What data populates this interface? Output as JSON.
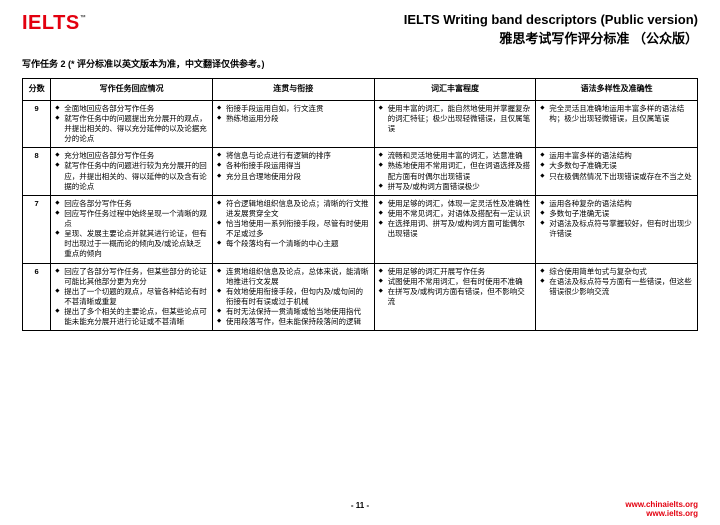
{
  "logo": {
    "text": "IELTS",
    "tm": "™",
    "color": "#e3000f"
  },
  "title": {
    "en": "IELTS Writing band descriptors   (Public version)",
    "zh": "雅思考试写作评分标准 （公众版）"
  },
  "subtitle": "写作任务 2      (* 评分标准以英文版本为准，中文翻译仅供参考。)",
  "headers": [
    "分数",
    "写作任务回应情况",
    "连贯与衔接",
    "词汇丰富程度",
    "语法多样性及准确性"
  ],
  "rows": [
    {
      "band": "9",
      "c1": [
        "全面地回应各部分写作任务",
        "就写作任务中的问题提出充分展开的观点，并提出相关的、得以充分延伸的以及论据充分的论点"
      ],
      "c2": [
        "衔接手段运用自如，行文连贯",
        "熟练地运用分段"
      ],
      "c3": [
        "使用丰富的词汇，能自然地使用并掌握复杂的词汇特征；极少出现轻微错误，且仅属笔误"
      ],
      "c4": [
        "完全灵活且准确地运用丰富多样的语法结构；极少出现轻微错误，且仅属笔误"
      ]
    },
    {
      "band": "8",
      "c1": [
        "充分地回应各部分写作任务",
        "就写作任务中的问题进行较为充分展开的回应，并提出相关的、得以延伸的以及含有论据的论点"
      ],
      "c2": [
        "将信息与论点进行有逻辑的排序",
        "各种衔接手段运用得当",
        "充分且合理地使用分段"
      ],
      "c3": [
        "流畅和灵活地使用丰富的词汇，达意准确",
        "熟练地使用不常用词汇，但在词语选择及搭配方面有时偶尔出现错误",
        "拼写及/或构词方面错误极少"
      ],
      "c4": [
        "运用丰富多样的语法结构",
        "大多数句子准确无误",
        "只在极偶然情况下出现错误或存在不当之处"
      ]
    },
    {
      "band": "7",
      "c1": [
        "回应各部分写作任务",
        "回应写作任务过程中始终呈现一个清晰的观点",
        "呈现、发展主要论点并就其进行论证，但有时出现过于一概而论的倾向及/或论点缺乏重点的倾向"
      ],
      "c2": [
        "符合逻辑地组织信息及论点；清晰的行文推进发展贯穿全文",
        "恰当地使用一系列衔接手段，尽管有时使用不足或过多",
        "每个段落均有一个清晰的中心主题"
      ],
      "c3": [
        "使用足够的词汇，体现一定灵活性及准确性",
        "使用不常见词汇，对语体及搭配有一定认识",
        "在选择用词、拼写及/或构词方面可能偶尔出现错误"
      ],
      "c4": [
        "运用各种复杂的语法结构",
        "多数句子准确无误",
        "对语法及标点符号掌握较好，但有时出现少许错误"
      ]
    },
    {
      "band": "6",
      "c1": [
        "回应了各部分写作任务，但某些部分的论证可能比其他部分更为充分",
        "提出了一个切题的观点，尽管各种结论有时不甚清晰或重复",
        "提出了多个相关的主要论点，但某些论点可能未能充分展开进行论证或不甚清晰"
      ],
      "c2": [
        "连贯地组织信息及论点，总体来说，能清晰地推进行文发展",
        "有效地使用衔接手段，但句内及/或句间的衔接有时有误或过于机械",
        "有时无法保持一贯清晰或恰当地使用指代",
        "使用段落写作，但未能保持段落间的逻辑"
      ],
      "c3": [
        "使用足够的词汇开展写作任务",
        "试图使用不常用词汇，但有时使用不准确",
        "在拼写及/或构词方面有错误，但不影响交流"
      ],
      "c4": [
        "综合使用简单句式与复杂句式",
        "在语法及标点符号方面有一些错误，但这些错误很少影响交流"
      ]
    }
  ],
  "footer": {
    "page": "- 11 -",
    "url1": "www.chinaielts.org",
    "url2": "www.ielts.org"
  }
}
